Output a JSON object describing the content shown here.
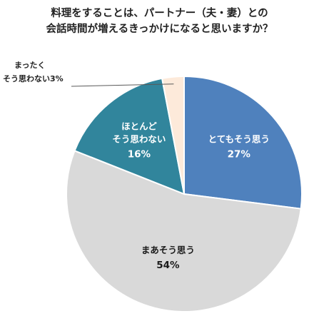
{
  "chart_data": {
    "type": "pie",
    "title_lines": [
      "料理をすることは、パートナー（夫・妻）との",
      "会話時間が増えるきっかけになると思いますか？"
    ],
    "start": "12 o'clock",
    "direction": "clockwise",
    "slices": [
      {
        "label_lines": [
          "とてもそう思う"
        ],
        "value": 27,
        "value_label": "27%",
        "color": "#4F81BD",
        "text_color": "#ffffff"
      },
      {
        "label_lines": [
          "まあそう思う"
        ],
        "value": 54,
        "value_label": "54%",
        "color": "#D9D9D9",
        "text_color": "#1a1a1a"
      },
      {
        "label_lines": [
          "ほとんど",
          "そう思わない"
        ],
        "value": 16,
        "value_label": "16%",
        "color": "#31859C",
        "text_color": "#ffffff"
      },
      {
        "label_lines": [
          "まったく",
          "そう思わない3%"
        ],
        "value": 3,
        "value_label": "",
        "color": "#FDEADA",
        "text_color": "#222222"
      }
    ]
  }
}
